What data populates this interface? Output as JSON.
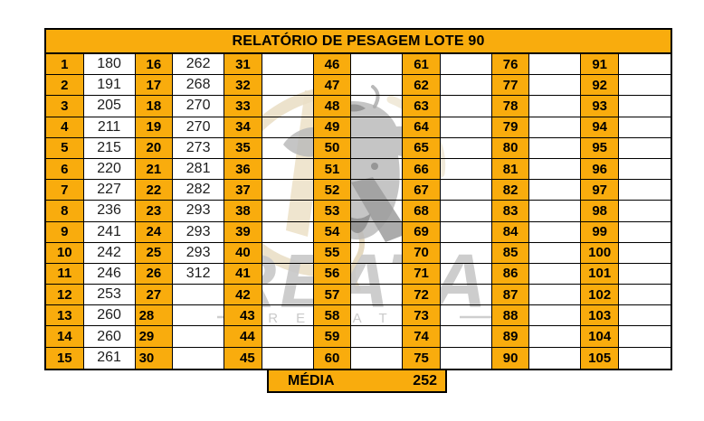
{
  "title": "RELATÓRIO DE PESAGEM LOTE 90",
  "summary": {
    "label": "MÉDIA",
    "value": "252"
  },
  "watermark": {
    "brand": "REATA",
    "subtitle": "REMATES",
    "logo": "cattle-head-with-lasso"
  },
  "colors": {
    "accent_orange": "#F9AC0D",
    "border_black": "#000000",
    "watermark_grey": "#C7C7C7",
    "watermark_tan": "#EADFC6",
    "watermark_dark_grey": "#9C9C9C"
  },
  "table": {
    "lot_start": 1,
    "lot_end": 105,
    "rows_per_column": 15,
    "column_pairs": 7,
    "weights": [
      "180",
      "191",
      "205",
      "211",
      "215",
      "220",
      "227",
      "236",
      "241",
      "242",
      "246",
      "253",
      "260",
      "260",
      "261",
      "262",
      "268",
      "270",
      "270",
      "273",
      "281",
      "282",
      "293",
      "293",
      "293",
      "312",
      "",
      "",
      "",
      "",
      "",
      "",
      "",
      "",
      "",
      "",
      "",
      "",
      "",
      "",
      "",
      "",
      "",
      "",
      "",
      "",
      "",
      "",
      "",
      "",
      "",
      "",
      "",
      "",
      "",
      "",
      "",
      "",
      "",
      "",
      "",
      "",
      "",
      "",
      "",
      "",
      "",
      "",
      "",
      "",
      "",
      "",
      "",
      "",
      "",
      "",
      "",
      "",
      "",
      "",
      "",
      "",
      "",
      "",
      "",
      "",
      "",
      "",
      "",
      "",
      "",
      "",
      "",
      "",
      "",
      "",
      "",
      "",
      "",
      "",
      "",
      "",
      "",
      "",
      ""
    ]
  }
}
